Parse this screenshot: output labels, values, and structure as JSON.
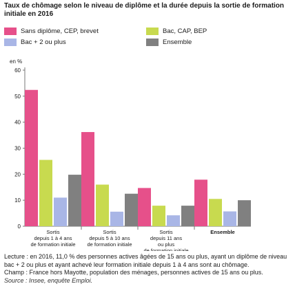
{
  "title": "Taux de chômage selon le niveau de diplôme et la durée depuis la sortie de formation initiale en 2016",
  "colors": {
    "sans_diplome": "#e6508a",
    "bac_cap_bep": "#c8da4f",
    "bac_plus_2": "#a9b6e6",
    "ensemble": "#808080"
  },
  "chart_data": {
    "type": "bar",
    "ylabel": "en %",
    "ylim": [
      0,
      60
    ],
    "yticks": [
      0,
      10,
      20,
      30,
      40,
      50,
      60
    ],
    "grid": false,
    "legend_position": "top",
    "categories": [
      [
        "Sortis",
        "depuis 1 à 4 ans",
        "de formation initiale"
      ],
      [
        "Sortis",
        "depuis 5 à 10 ans",
        "de formation initiale"
      ],
      [
        "Sortis",
        "depuis 11 ans",
        "ou plus",
        "de formation initiale"
      ],
      [
        "Ensemble"
      ]
    ],
    "series": [
      {
        "name": "Sans diplôme, CEP, brevet",
        "color": "#e6508a",
        "values": [
          52.4,
          36.2,
          14.7,
          17.9
        ]
      },
      {
        "name": "Bac, CAP, BEP",
        "color": "#c8da4f",
        "values": [
          25.5,
          16.0,
          7.9,
          10.5
        ]
      },
      {
        "name": "Bac + 2 ou plus",
        "color": "#a9b6e6",
        "values": [
          11.0,
          5.6,
          4.2,
          5.7
        ]
      },
      {
        "name": "Ensemble",
        "color": "#808080",
        "values": [
          19.8,
          12.5,
          7.9,
          10.0
        ]
      }
    ]
  },
  "legend": [
    {
      "label": "Sans diplôme, CEP, brevet",
      "color": "#e6508a"
    },
    {
      "label": "Bac, CAP, BEP",
      "color": "#c8da4f"
    },
    {
      "label": "Bac + 2 ou plus",
      "color": "#a9b6e6"
    },
    {
      "label": "Ensemble",
      "color": "#808080"
    }
  ],
  "notes": {
    "lecture": "Lecture : en 2016, 11,0 % des personnes actives âgées de 15 ans ou plus, ayant un diplôme de niveau bac + 2 ou plus et ayant achevé leur formation initiale depuis 1 à 4 ans sont au chômage.",
    "champ": "Champ : France hors Mayotte, population des ménages, personnes actives de 15 ans ou plus.",
    "source": "Source : Insee, enquête Emploi."
  }
}
